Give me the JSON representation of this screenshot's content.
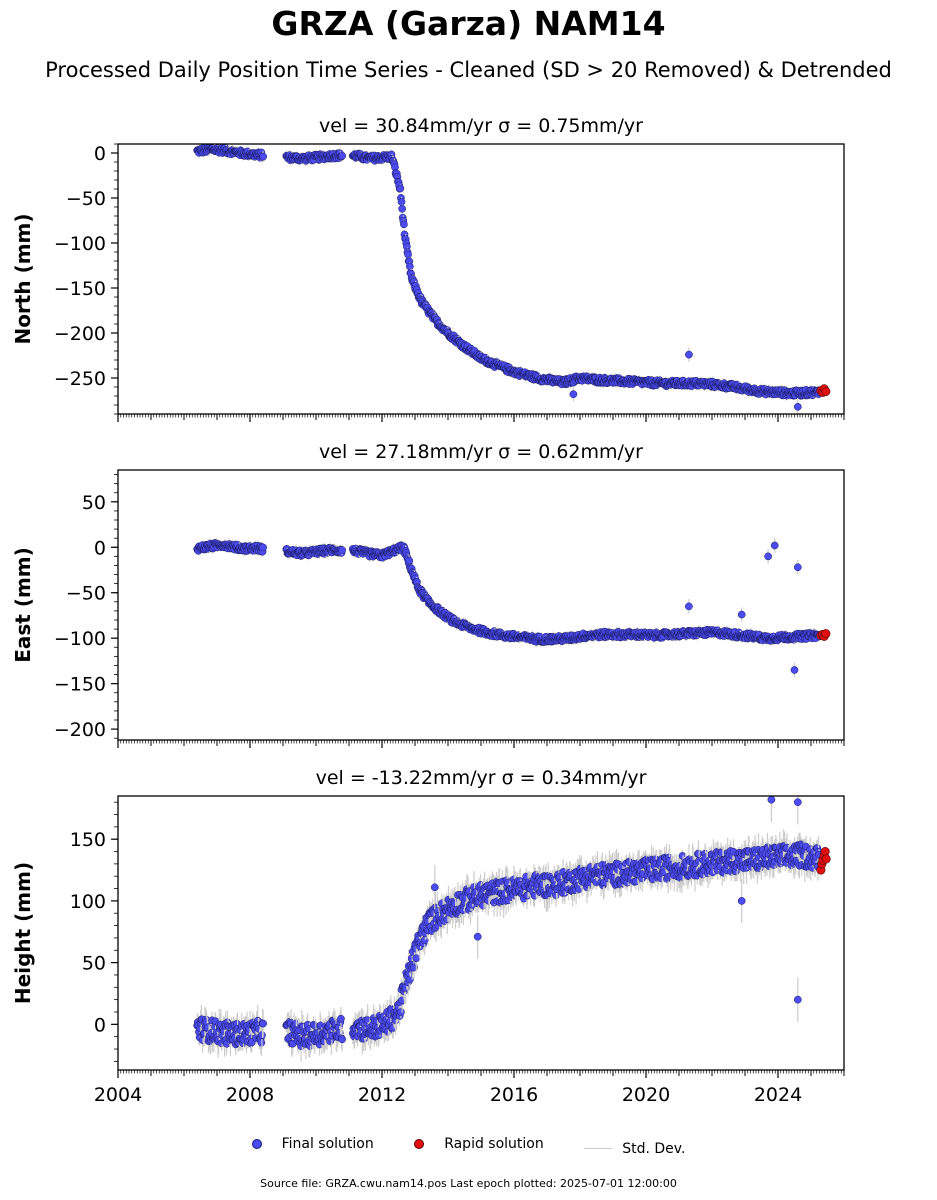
{
  "title": "GRZA (Garza) NAM14",
  "subtitle": "Processed Daily Position Time Series - Cleaned (SD > 20 Removed) & Detrended",
  "legend": {
    "final_label": "Final solution",
    "rapid_label": "Rapid solution",
    "std_label": "Std. Dev."
  },
  "colors": {
    "final": "#4b4bf0",
    "rapid": "#e01010",
    "std": "#cccccc"
  },
  "footer": "Source file: GRZA.cwu.nam14.pos  Last epoch plotted: 2025-07-01 12:00:00",
  "chart_data": [
    {
      "type": "scatter",
      "panel_title": "vel = 30.84mm/yr   σ = 0.75mm/yr",
      "ylabel": "North (mm)",
      "xlim": [
        2004.0,
        2026.0
      ],
      "ylim": [
        -290,
        10
      ],
      "yticks": [
        0,
        -50,
        -100,
        -150,
        -200,
        -250
      ],
      "xticks": [
        "2004",
        "2008",
        "2012",
        "2016",
        "2020",
        "2024"
      ],
      "x": [
        2006.4,
        2006.8,
        2007.2,
        2007.7,
        2008.2,
        2009.2,
        2009.6,
        2010.0,
        2010.5,
        2011.2,
        2011.6,
        2012.0,
        2012.3,
        2012.55,
        2012.7,
        2012.9,
        2013.2,
        2013.6,
        2014.0,
        2014.5,
        2015.0,
        2015.5,
        2016.0,
        2016.5,
        2017.0,
        2017.5,
        2018.0,
        2018.5,
        2019.0,
        2019.5,
        2020.0,
        2020.5,
        2021.0,
        2021.5,
        2022.0,
        2022.5,
        2023.0,
        2023.5,
        2024.0,
        2024.5,
        2025.0
      ],
      "y": [
        2,
        4,
        3,
        0,
        -2,
        -5,
        -6,
        -5,
        -3,
        -3,
        -6,
        -5,
        -4,
        -40,
        -95,
        -140,
        -165,
        -185,
        -200,
        -215,
        -228,
        -236,
        -243,
        -248,
        -252,
        -255,
        -250,
        -252,
        -253,
        -254,
        -255,
        -256,
        -256,
        -256,
        -257,
        -259,
        -262,
        -265,
        -266,
        -267,
        -266
      ],
      "rapid_x": [
        2025.3,
        2025.35,
        2025.4,
        2025.45
      ],
      "rapid_y": [
        -264,
        -266,
        -262,
        -265
      ],
      "outliers": [
        [
          2021.3,
          -224
        ],
        [
          2024.6,
          -282
        ],
        [
          2017.8,
          -268
        ]
      ]
    },
    {
      "type": "scatter",
      "panel_title": "vel = 27.18mm/yr   σ = 0.62mm/yr",
      "ylabel": "East (mm)",
      "xlim": [
        2004.0,
        2026.0
      ],
      "ylim": [
        -212,
        85
      ],
      "yticks": [
        50,
        0,
        -50,
        -100,
        -150,
        -200
      ],
      "xticks": [
        "2004",
        "2008",
        "2012",
        "2016",
        "2020",
        "2024"
      ],
      "x": [
        2006.4,
        2006.8,
        2007.2,
        2007.7,
        2008.2,
        2009.2,
        2009.6,
        2010.0,
        2010.5,
        2011.2,
        2011.6,
        2012.0,
        2012.4,
        2012.65,
        2012.85,
        2013.1,
        2013.4,
        2013.8,
        2014.2,
        2014.7,
        2015.2,
        2015.7,
        2016.2,
        2016.7,
        2017.2,
        2017.7,
        2018.2,
        2018.7,
        2019.2,
        2019.7,
        2020.2,
        2020.7,
        2021.2,
        2021.7,
        2022.2,
        2022.7,
        2023.2,
        2023.7,
        2024.2,
        2024.7,
        2025.1
      ],
      "y": [
        -1,
        1,
        3,
        -1,
        -1,
        -5,
        -7,
        -5,
        -3,
        -4,
        -7,
        -9,
        -3,
        0,
        -20,
        -45,
        -60,
        -72,
        -82,
        -89,
        -94,
        -97,
        -99,
        -101,
        -101,
        -100,
        -97,
        -96,
        -96,
        -96,
        -97,
        -96,
        -95,
        -94,
        -94,
        -96,
        -98,
        -100,
        -99,
        -98,
        -97
      ],
      "rapid_x": [
        2025.3,
        2025.35,
        2025.4,
        2025.45
      ],
      "rapid_y": [
        -97,
        -96,
        -98,
        -95
      ],
      "outliers": [
        [
          2021.3,
          -65
        ],
        [
          2023.7,
          -10
        ],
        [
          2023.9,
          2
        ],
        [
          2024.6,
          -22
        ],
        [
          2024.5,
          -135
        ],
        [
          2022.9,
          -74
        ]
      ]
    },
    {
      "type": "scatter",
      "panel_title": "vel = -13.22mm/yr   σ = 0.34mm/yr",
      "ylabel": "Height (mm)",
      "xlim": [
        2004.0,
        2026.0
      ],
      "ylim": [
        -37,
        185
      ],
      "yticks": [
        150,
        100,
        50,
        0
      ],
      "xticks": [
        "2004",
        "2008",
        "2012",
        "2016",
        "2020",
        "2024"
      ],
      "x": [
        2006.4,
        2006.8,
        2007.2,
        2007.7,
        2008.2,
        2009.2,
        2009.6,
        2010.0,
        2010.5,
        2011.2,
        2011.6,
        2012.1,
        2012.5,
        2012.8,
        2013.1,
        2013.4,
        2013.8,
        2014.2,
        2014.7,
        2015.2,
        2015.7,
        2016.2,
        2016.7,
        2017.2,
        2017.7,
        2018.2,
        2018.7,
        2019.2,
        2019.7,
        2020.2,
        2020.7,
        2021.2,
        2021.7,
        2022.2,
        2022.7,
        2023.2,
        2023.7,
        2024.2,
        2024.7,
        2025.1
      ],
      "y": [
        -3,
        -5,
        -7,
        -8,
        -6,
        -6,
        -10,
        -8,
        -5,
        -2,
        -4,
        0,
        10,
        40,
        65,
        82,
        90,
        97,
        102,
        106,
        108,
        110,
        113,
        113,
        116,
        120,
        121,
        122,
        124,
        125,
        127,
        128,
        130,
        131,
        133,
        133,
        135,
        136,
        137,
        135
      ],
      "rapid_x": [
        2025.3,
        2025.33,
        2025.36,
        2025.4,
        2025.43,
        2025.46
      ],
      "rapid_y": [
        125,
        130,
        133,
        137,
        140,
        134
      ],
      "outliers": [
        [
          2024.6,
          20
        ],
        [
          2023.8,
          182
        ],
        [
          2024.6,
          180
        ],
        [
          2022.9,
          100
        ],
        [
          2014.9,
          71
        ],
        [
          2013.6,
          111
        ]
      ]
    }
  ]
}
